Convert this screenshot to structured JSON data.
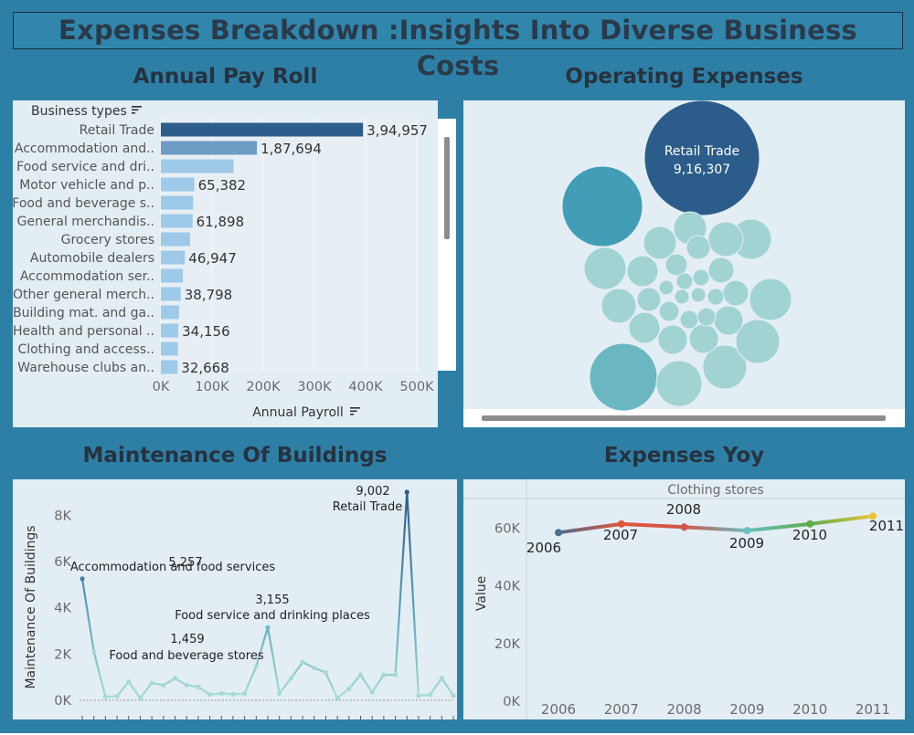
{
  "page": {
    "title": "Expenses Breakdown :Insights Into Diverse Business Costs"
  },
  "payroll": {
    "title": "Annual Pay Roll",
    "chart_data": {
      "type": "bar",
      "orientation": "horizontal",
      "row_header": "Business types",
      "xlabel": "Annual Payroll",
      "xlim": [
        0,
        500000
      ],
      "xticks": [
        "0K",
        "100K",
        "200K",
        "300K",
        "400K",
        "500K"
      ],
      "categories": [
        "Retail Trade",
        "Accommodation and..",
        "Food service and dri..",
        "Motor vehicle and p..",
        "Food and beverage s..",
        "General merchandis..",
        "Grocery stores",
        "Automobile dealers",
        "Accommodation ser..",
        "Other general merch..",
        "Building mat. and ga..",
        "Health and personal ..",
        "Clothing and access..",
        "Warehouse clubs an.."
      ],
      "values": [
        394957,
        187694,
        142000,
        65382,
        63000,
        61898,
        57000,
        46947,
        43000,
        38798,
        35500,
        34156,
        33300,
        32668
      ],
      "labels": [
        "3,94,957",
        "1,87,694",
        "",
        "65,382",
        "",
        "61,898",
        "",
        "46,947",
        "",
        "38,798",
        "",
        "34,156",
        "",
        "32,668"
      ]
    }
  },
  "operating": {
    "title": "Operating Expenses",
    "chart_data": {
      "type": "packed-bubble",
      "label": "Retail Trade",
      "value_label": "9,16,307",
      "values": [
        916307
      ]
    }
  },
  "maintenance": {
    "title": "Maintenance Of Buildings",
    "chart_data": {
      "type": "line",
      "ylabel": "Maintenance Of Buildings",
      "ylim": [
        0,
        9002
      ],
      "yticks": [
        "0K",
        "2K",
        "4K",
        "6K",
        "8K"
      ],
      "values": [
        5257,
        2100,
        150,
        180,
        800,
        100,
        750,
        650,
        950,
        650,
        580,
        250,
        300,
        260,
        290,
        1459,
        3155,
        300,
        950,
        1650,
        1400,
        1200,
        100,
        500,
        1100,
        350,
        1100,
        1100,
        9002,
        200,
        250,
        950,
        200
      ],
      "annotations": [
        {
          "index": 0,
          "value": "5,257",
          "label": "Accommodation and food services"
        },
        {
          "index": 15,
          "value": "1,459",
          "label": "Food and beverage stores"
        },
        {
          "index": 16,
          "value": "3,155",
          "label": "Food service and drinking places"
        },
        {
          "index": 28,
          "value": "9,002",
          "label": "Retail Trade"
        }
      ]
    }
  },
  "yoy": {
    "title": "Expenses Yoy",
    "chart_data": {
      "type": "line",
      "panel_header": "Clothing stores",
      "ylabel": "Value",
      "ylim": [
        0,
        70000
      ],
      "yticks": [
        "0K",
        "20K",
        "40K",
        "60K"
      ],
      "categories": [
        "2006",
        "2007",
        "2008",
        "2009",
        "2010",
        "2011"
      ],
      "values": [
        58500,
        61500,
        60400,
        59200,
        61500,
        64200
      ],
      "colors": [
        "#4b6f8c",
        "#e2553c",
        "#d0564c",
        "#6abfc0",
        "#5faa4b",
        "#e8c53a"
      ]
    }
  }
}
